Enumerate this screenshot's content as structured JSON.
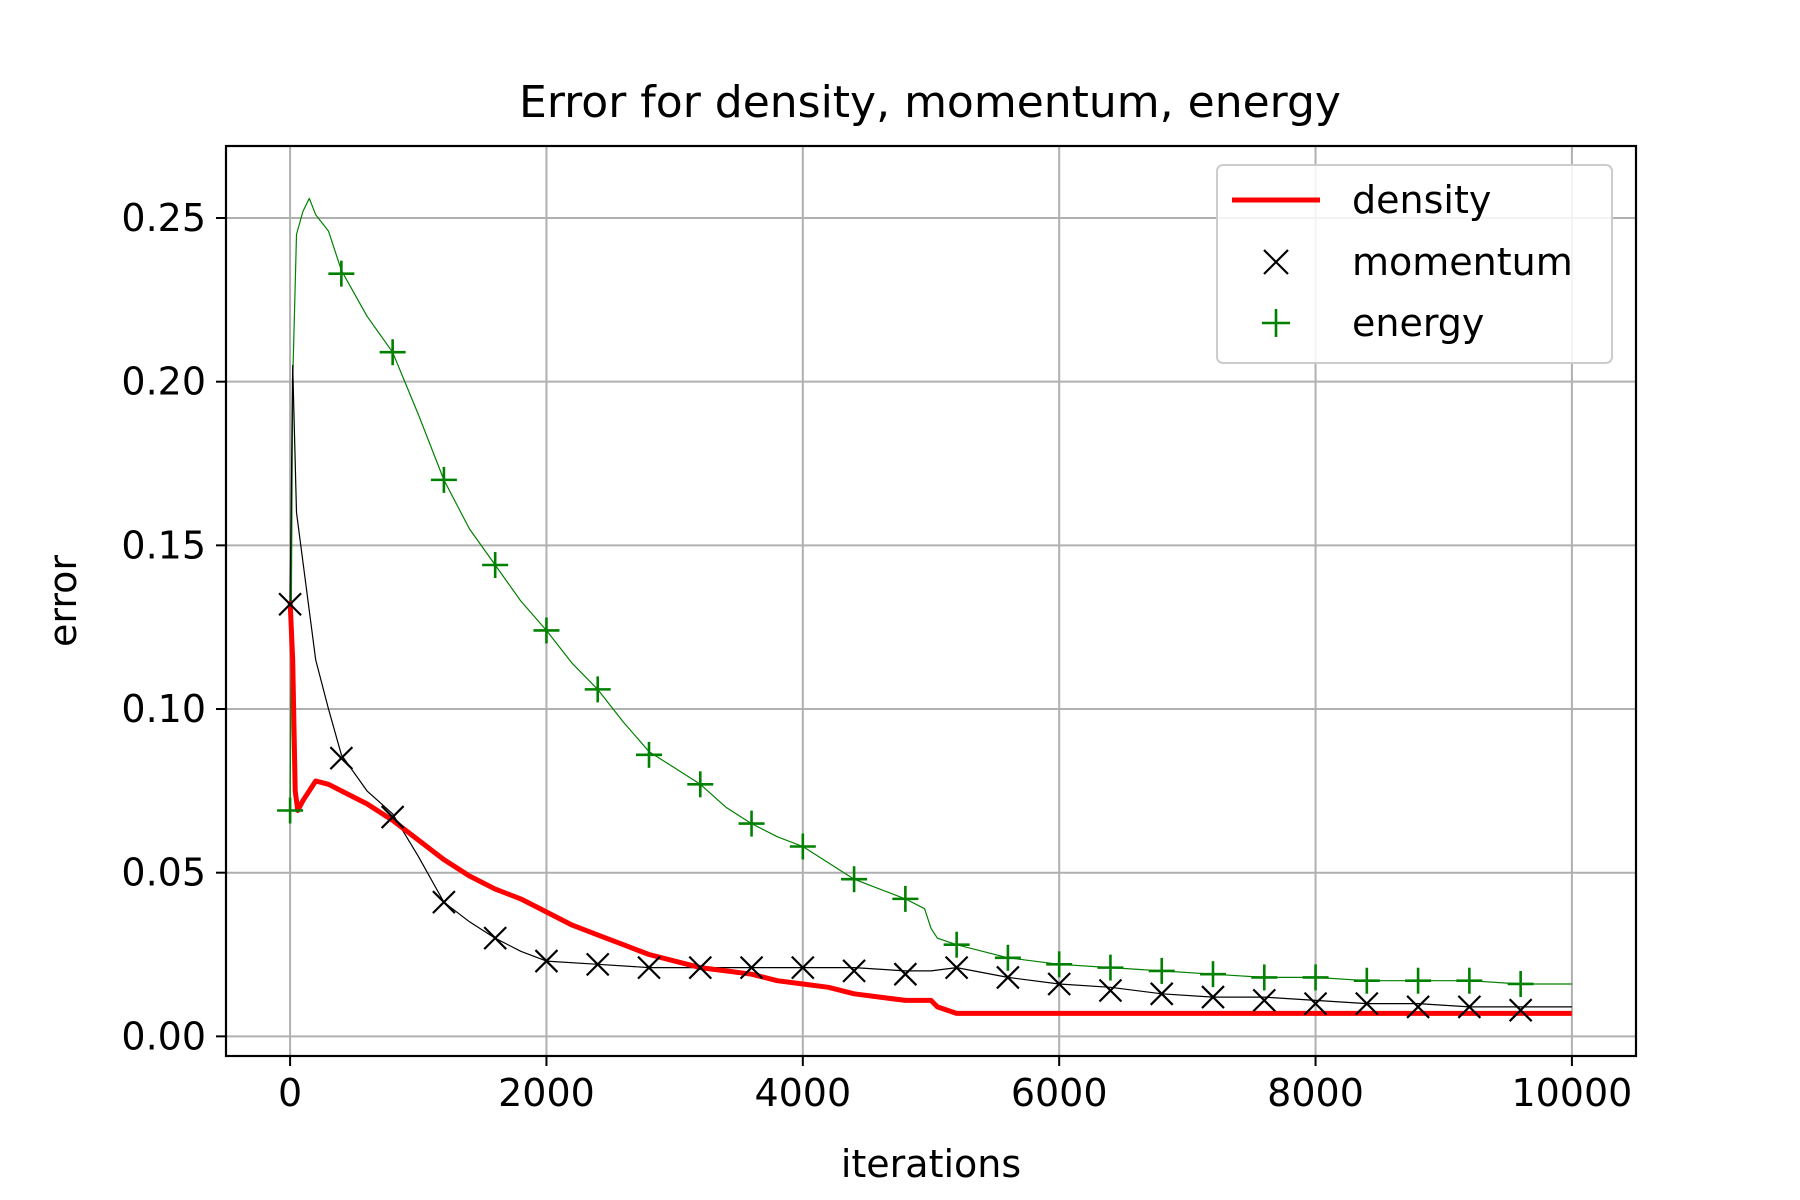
{
  "chart_data": {
    "type": "line",
    "title": "Error for density, momentum, energy",
    "xlabel": "iterations",
    "ylabel": "error",
    "xlim": [
      -500,
      10500
    ],
    "ylim": [
      -0.006,
      0.272
    ],
    "xticks": [
      0,
      2000,
      4000,
      6000,
      8000,
      10000
    ],
    "xtick_labels": [
      "0",
      "2000",
      "4000",
      "6000",
      "8000",
      "10000"
    ],
    "yticks": [
      0.0,
      0.05,
      0.1,
      0.15,
      0.2,
      0.25
    ],
    "ytick_labels": [
      "0.00",
      "0.05",
      "0.10",
      "0.15",
      "0.20",
      "0.25"
    ],
    "grid": true,
    "legend_position": "top-right",
    "series": [
      {
        "name": "density",
        "style": "line",
        "color": "#ff0000",
        "x": [
          0,
          20,
          40,
          60,
          100,
          200,
          300,
          400,
          600,
          800,
          1000,
          1200,
          1400,
          1600,
          1800,
          2000,
          2200,
          2400,
          2600,
          2800,
          3000,
          3200,
          3400,
          3600,
          3800,
          4000,
          4200,
          4400,
          4600,
          4800,
          5000,
          5050,
          5200,
          5500,
          6000,
          7000,
          8000,
          9000,
          10000
        ],
        "y": [
          0.133,
          0.115,
          0.075,
          0.069,
          0.072,
          0.078,
          0.077,
          0.075,
          0.071,
          0.066,
          0.06,
          0.054,
          0.049,
          0.045,
          0.042,
          0.038,
          0.034,
          0.031,
          0.028,
          0.025,
          0.023,
          0.021,
          0.02,
          0.019,
          0.017,
          0.016,
          0.015,
          0.013,
          0.012,
          0.011,
          0.011,
          0.009,
          0.007,
          0.007,
          0.007,
          0.007,
          0.007,
          0.007,
          0.007
        ]
      },
      {
        "name": "momentum",
        "style": "thin-line-with-x-markers",
        "color": "#000000",
        "x": [
          0,
          20,
          50,
          100,
          200,
          300,
          400,
          600,
          800,
          1000,
          1200,
          1400,
          1600,
          1800,
          2000,
          2400,
          2800,
          3200,
          3600,
          4000,
          4400,
          4800,
          5000,
          5200,
          5600,
          6000,
          6400,
          6800,
          7200,
          7600,
          8000,
          8400,
          8800,
          9200,
          9600,
          10000
        ],
        "y": [
          0.133,
          0.205,
          0.16,
          0.145,
          0.115,
          0.1,
          0.086,
          0.075,
          0.068,
          0.055,
          0.041,
          0.035,
          0.03,
          0.026,
          0.023,
          0.022,
          0.021,
          0.021,
          0.021,
          0.021,
          0.021,
          0.02,
          0.02,
          0.021,
          0.018,
          0.016,
          0.015,
          0.013,
          0.012,
          0.012,
          0.011,
          0.01,
          0.01,
          0.009,
          0.009,
          0.009
        ],
        "markers_x": [
          0,
          400,
          800,
          1200,
          1600,
          2000,
          2400,
          2800,
          3200,
          3600,
          4000,
          4400,
          4800,
          5200,
          5600,
          6000,
          6400,
          6800,
          7200,
          7600,
          8000,
          8400,
          8800,
          9200,
          9600
        ],
        "markers_y": [
          0.132,
          0.085,
          0.067,
          0.041,
          0.03,
          0.023,
          0.022,
          0.021,
          0.021,
          0.021,
          0.021,
          0.02,
          0.019,
          0.021,
          0.018,
          0.016,
          0.014,
          0.013,
          0.012,
          0.011,
          0.01,
          0.01,
          0.009,
          0.009,
          0.008
        ]
      },
      {
        "name": "energy",
        "style": "thin-line-with-plus-markers",
        "color": "#008000",
        "x": [
          0,
          20,
          50,
          100,
          150,
          200,
          300,
          400,
          600,
          800,
          1000,
          1200,
          1400,
          1600,
          1800,
          2000,
          2200,
          2400,
          2600,
          2800,
          3000,
          3200,
          3400,
          3600,
          3800,
          4000,
          4200,
          4400,
          4600,
          4800,
          4950,
          5000,
          5050,
          5200,
          5600,
          6000,
          6400,
          6800,
          7200,
          7600,
          8000,
          8400,
          8800,
          9200,
          9600,
          10000
        ],
        "y": [
          0.069,
          0.2,
          0.245,
          0.252,
          0.256,
          0.251,
          0.246,
          0.234,
          0.22,
          0.209,
          0.19,
          0.17,
          0.155,
          0.144,
          0.133,
          0.124,
          0.114,
          0.106,
          0.096,
          0.087,
          0.082,
          0.077,
          0.07,
          0.065,
          0.061,
          0.058,
          0.053,
          0.048,
          0.045,
          0.042,
          0.039,
          0.033,
          0.03,
          0.028,
          0.024,
          0.022,
          0.021,
          0.02,
          0.019,
          0.018,
          0.018,
          0.017,
          0.017,
          0.017,
          0.016,
          0.016
        ],
        "markers_x": [
          0,
          400,
          800,
          1200,
          1600,
          2000,
          2400,
          2800,
          3200,
          3600,
          4000,
          4400,
          4800,
          5200,
          5600,
          6000,
          6400,
          6800,
          7200,
          7600,
          8000,
          8400,
          8800,
          9200,
          9600
        ],
        "markers_y": [
          0.069,
          0.233,
          0.209,
          0.17,
          0.144,
          0.124,
          0.106,
          0.086,
          0.077,
          0.065,
          0.058,
          0.048,
          0.042,
          0.028,
          0.024,
          0.022,
          0.021,
          0.02,
          0.019,
          0.018,
          0.018,
          0.017,
          0.017,
          0.017,
          0.016
        ]
      }
    ]
  }
}
